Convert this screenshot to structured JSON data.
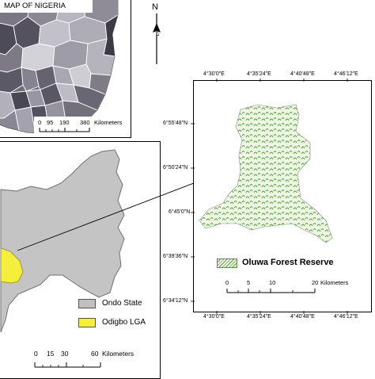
{
  "nigeria_inset": {
    "title": "MAP OF NIGERIA",
    "scale_ticks": [
      "0",
      "95",
      "190",
      "380"
    ],
    "scale_unit": "Kilometers"
  },
  "north_arrow": {
    "label": "N"
  },
  "ondo_map": {
    "scale_ticks": [
      "0",
      "15",
      "30",
      "60"
    ],
    "scale_unit": "Kilometers",
    "legend": [
      {
        "label": "Ondo State",
        "color": "#c0c0c0"
      },
      {
        "label": "Odigbo LGA",
        "color": "#f5ee3a"
      }
    ]
  },
  "forest_map": {
    "top_coords": [
      "4°30'0\"E",
      "4°35'24\"E",
      "4°40'48\"E",
      "4°46'12\"E"
    ],
    "bottom_coords": [
      "4°30'0\"E",
      "4°35'24\"E",
      "4°40'48\"E",
      "4°46'12\"E"
    ],
    "left_coords": [
      "6°55'48\"N",
      "6°50'24\"N",
      "6°45'0\"N",
      "6°39'36\"N",
      "6°34'12\"N"
    ],
    "legend_label": "Oluwa Forest Reserve",
    "legend_color": "#7fbf5a",
    "scale_ticks": [
      "0",
      "5",
      "10",
      "20"
    ],
    "scale_unit": "Kilometers"
  }
}
